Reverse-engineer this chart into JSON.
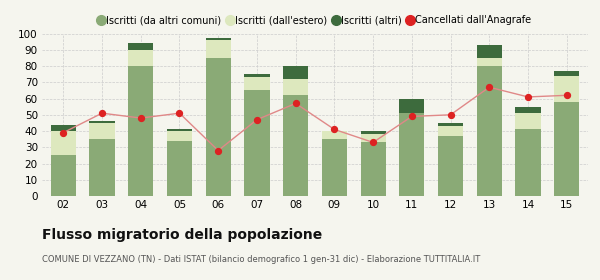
{
  "years": [
    "02",
    "03",
    "04",
    "05",
    "06",
    "07",
    "08",
    "09",
    "10",
    "11",
    "12",
    "13",
    "14",
    "15"
  ],
  "iscritti_comuni": [
    25,
    35,
    80,
    34,
    85,
    65,
    62,
    35,
    33,
    51,
    37,
    80,
    41,
    58
  ],
  "iscritti_estero": [
    15,
    10,
    10,
    6,
    11,
    8,
    10,
    5,
    5,
    0,
    6,
    5,
    10,
    16
  ],
  "iscritti_altri": [
    4,
    1,
    4,
    1,
    1,
    2,
    8,
    0,
    2,
    9,
    2,
    8,
    4,
    3
  ],
  "cancellati": [
    39,
    51,
    48,
    51,
    28,
    47,
    57,
    41,
    33,
    49,
    50,
    67,
    61,
    62
  ],
  "color_comuni": "#8aaa76",
  "color_estero": "#dde8be",
  "color_altri": "#3d6b3d",
  "color_cancellati": "#dd2222",
  "color_line": "#e08888",
  "ylim": [
    0,
    100
  ],
  "yticks": [
    0,
    10,
    20,
    30,
    40,
    50,
    60,
    70,
    80,
    90,
    100
  ],
  "bg_color": "#f5f5ee",
  "grid_color": "#cccccc",
  "title": "Flusso migratorio della popolazione",
  "subtitle": "COMUNE DI VEZZANO (TN) - Dati ISTAT (bilancio demografico 1 gen-31 dic) - Elaborazione TUTTITALIA.IT",
  "legend_labels": [
    "Iscritti (da altri comuni)",
    "Iscritti (dall'estero)",
    "Iscritti (altri)",
    "Cancellati dall'Anagrafe"
  ]
}
